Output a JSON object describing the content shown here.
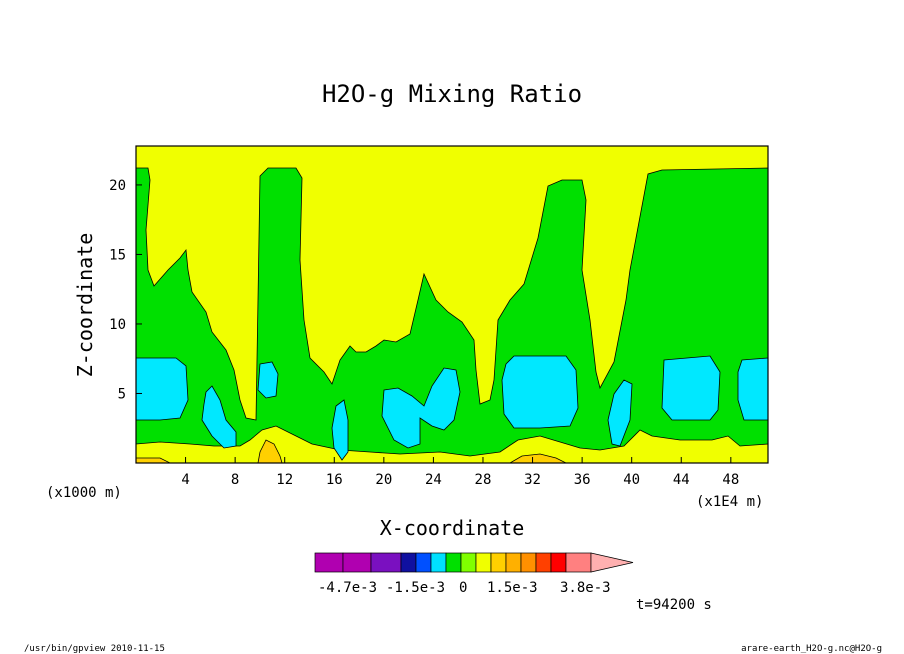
{
  "chart_data": {
    "type": "contour",
    "title": "H2O-g Mixing Ratio",
    "xlabel": "X-coordinate",
    "ylabel": "Z-coordinate",
    "xlim": [
      0,
      51
    ],
    "ylim": [
      0,
      22.8
    ],
    "x_ticks": [
      4,
      8,
      12,
      16,
      20,
      24,
      28,
      32,
      36,
      40,
      44,
      48
    ],
    "y_ticks": [
      5,
      10,
      15,
      20
    ],
    "x_unit_left": "(x1000 m)",
    "x_unit_right": "(x1E4 m)",
    "time_label": "t=94200 s",
    "colorbar": {
      "colors": [
        "#b000b0",
        "#b000b0",
        "#7a10c0",
        "#1010a0",
        "#0050ff",
        "#00e0ff",
        "#00e000",
        "#80ff00",
        "#f0ff00",
        "#ffd000",
        "#ffb000",
        "#ff9000",
        "#ff4000",
        "#ff0000",
        "#ff8080",
        "#ffb0b0"
      ],
      "tick_labels": [
        "-4.7e-3",
        "-1.5e-3",
        "0",
        "1.5e-3",
        "3.8e-3"
      ]
    },
    "regions": [
      {
        "name": "low-bubble",
        "x": 3.0,
        "z": 5.4,
        "level": -0.001
      },
      {
        "name": "low-bubble",
        "x": 10.6,
        "z": 5.8,
        "level": -0.001
      },
      {
        "name": "low-bubble",
        "x": 33.0,
        "z": 5.3,
        "level": -0.001
      },
      {
        "name": "low-bubble",
        "x": 45.0,
        "z": 5.4,
        "level": -0.001
      },
      {
        "name": "low-bubble",
        "x": 49.7,
        "z": 5.4,
        "level": -0.001
      },
      {
        "name": "high-patch",
        "x": 10.8,
        "z": 0.8,
        "level": 0.0015
      },
      {
        "name": "high-patch",
        "x": 33.0,
        "z": 0.6,
        "level": 0.0015
      }
    ],
    "field_description": "mixing ratio anomaly; green = slightly negative, yellow = slightly positive"
  },
  "footer": {
    "left": "/usr/bin/gpview  2010-11-15",
    "right": "arare-earth_H2O-g.nc@H2O-g"
  },
  "colors": {
    "green": "#00e000",
    "yellow": "#f0ff00",
    "cyan": "#00e8ff",
    "orange": "#ffd000"
  }
}
